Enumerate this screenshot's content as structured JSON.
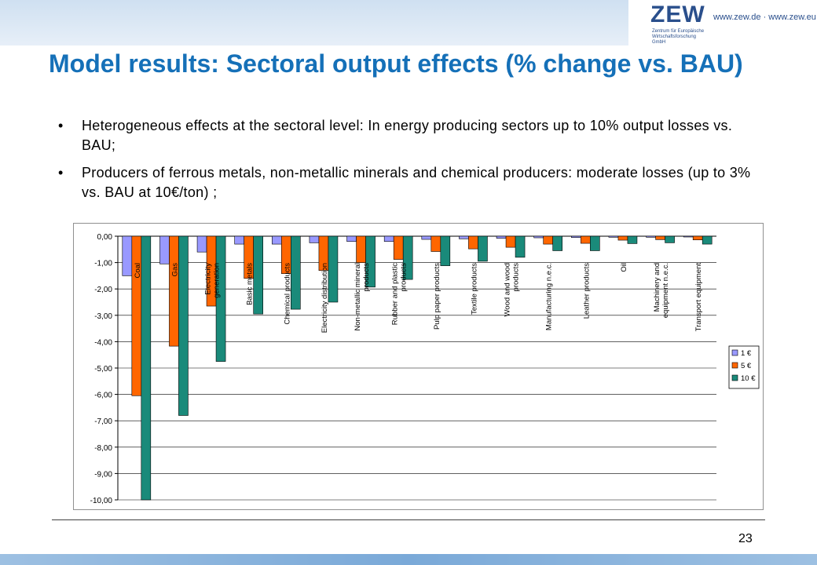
{
  "header": {
    "logo_text": "ZEW",
    "logo_subtitle": "Zentrum für Europäische Wirtschaftsforschung GmbH",
    "url_text": "www.zew.de · www.zew.eu"
  },
  "title": "Model results: Sectoral output effects (% change vs. BAU)",
  "bullets": [
    "Heterogeneous effects at the sectoral level: In energy producing sectors up to 10% output losses vs. BAU;",
    "Producers of ferrous metals, non-metallic minerals and  chemical producers: moderate losses (up to 3% vs. BAU at 10€/ton) ;"
  ],
  "page_number": "23",
  "colors": {
    "title": "#1570b8",
    "series_1": "#9999ff",
    "series_5": "#ff6600",
    "series_10": "#1a8a7a"
  },
  "chart_data": {
    "type": "bar",
    "categories": [
      [
        "Coal"
      ],
      [
        "Gas"
      ],
      [
        "Electricity",
        "generation"
      ],
      [
        "Basic metals"
      ],
      [
        "Chemical products"
      ],
      [
        "Electricity distribution"
      ],
      [
        "Non-metallic mineral",
        "products"
      ],
      [
        "Rubber and plastic",
        "products"
      ],
      [
        "Pulp paper products"
      ],
      [
        "Textile products"
      ],
      [
        "Wood and wood",
        "products"
      ],
      [
        "Manufacturing n.e.c."
      ],
      [
        "Leather products"
      ],
      [
        "Oil"
      ],
      [
        "Machinery and",
        "equipment n.e.c."
      ],
      [
        "Transport equipment"
      ]
    ],
    "series": [
      {
        "name": "1 €",
        "color": "#9999ff",
        "values": [
          -1.5,
          -1.05,
          -0.6,
          -0.3,
          -0.3,
          -0.25,
          -0.2,
          -0.2,
          -0.12,
          -0.1,
          -0.08,
          -0.06,
          -0.05,
          -0.04,
          -0.04,
          -0.03
        ]
      },
      {
        "name": "5 €",
        "color": "#ff6600",
        "values": [
          -6.05,
          -4.17,
          -2.65,
          -1.6,
          -1.42,
          -1.3,
          -1.0,
          -0.88,
          -0.58,
          -0.48,
          -0.42,
          -0.3,
          -0.27,
          -0.15,
          -0.13,
          -0.14
        ]
      },
      {
        "name": "10 €",
        "color": "#1a8a7a",
        "values": [
          -10.0,
          -6.8,
          -4.75,
          -2.95,
          -2.77,
          -2.5,
          -1.93,
          -1.64,
          -1.12,
          -0.95,
          -0.8,
          -0.55,
          -0.55,
          -0.28,
          -0.25,
          -0.3
        ]
      }
    ],
    "yticks": [
      "0,00",
      "-1,00",
      "-2,00",
      "-3,00",
      "-4,00",
      "-5,00",
      "-6,00",
      "-7,00",
      "-8,00",
      "-9,00",
      "-10,00"
    ],
    "ylim": [
      -10,
      0
    ],
    "grid": true,
    "legend_position": "right"
  }
}
